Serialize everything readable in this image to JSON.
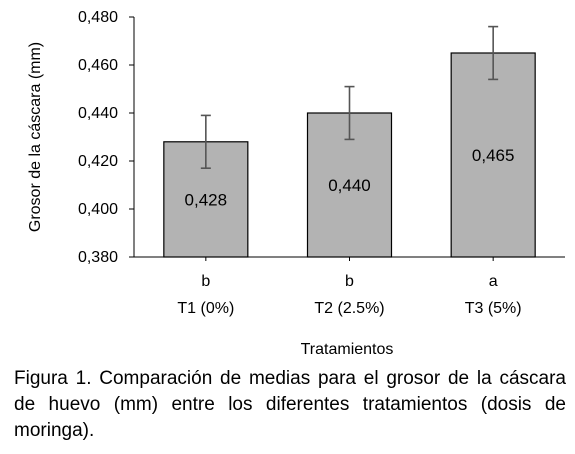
{
  "chart_data": {
    "type": "bar",
    "categories": [
      "T1 (0%)",
      "T2 (2.5%)",
      "T3 (5%)"
    ],
    "group_letters": [
      "b",
      "b",
      "a"
    ],
    "values": [
      0.428,
      0.44,
      0.465
    ],
    "value_labels": [
      "0,428",
      "0,440",
      "0,465"
    ],
    "error_bars": [
      0.011,
      0.011,
      0.011
    ],
    "xlabel": "Tratamientos",
    "ylabel": "Grosor de la cáscara (mm)",
    "ylim": [
      0.38,
      0.48
    ],
    "yticks": [
      0.38,
      0.4,
      0.42,
      0.44,
      0.46,
      0.48
    ],
    "ytick_labels": [
      "0,380",
      "0,400",
      "0,420",
      "0,440",
      "0,460",
      "0,480"
    ],
    "grid": false,
    "legend": "none",
    "bar_color": "#b3b3b3",
    "bar_edge_color": "#000000",
    "error_bar_color": "#555555"
  },
  "caption": "Figura 1. Comparación de medias para el grosor de la cáscara de huevo (mm) entre los diferentes tratamientos (dosis de moringa)."
}
